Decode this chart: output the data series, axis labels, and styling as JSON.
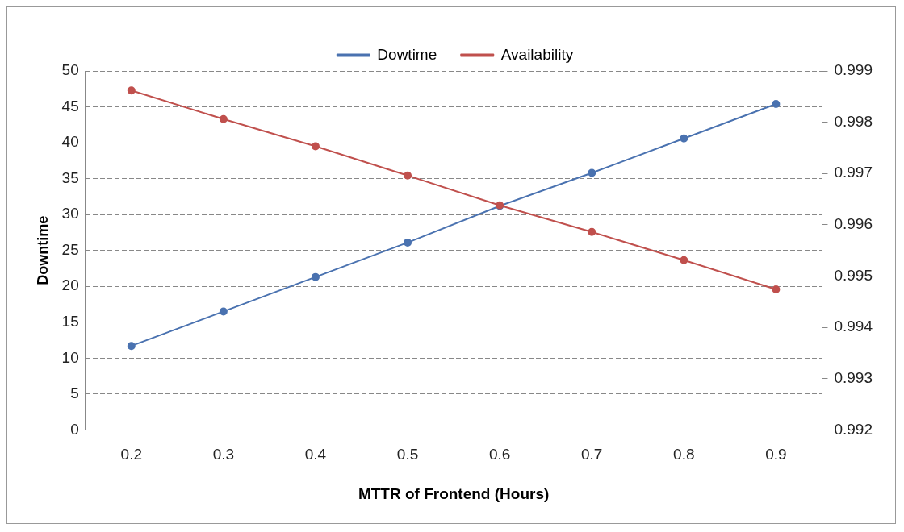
{
  "chart_data": {
    "type": "line",
    "xlabel": "MTTR of Frontend (Hours)",
    "ylabel": "Downtime",
    "categories": [
      "0.2",
      "0.3",
      "0.4",
      "0.5",
      "0.6",
      "0.7",
      "0.8",
      "0.9"
    ],
    "series": [
      {
        "name": "Dowtime",
        "color": "#4a72b0",
        "values": [
          11.7,
          16.5,
          21.3,
          26.1,
          31.2,
          35.8,
          40.6,
          45.4
        ]
      },
      {
        "name": "Availability",
        "color": "#c0504d",
        "axis": "y2",
        "values": [
          0.99862,
          0.99806,
          0.99753,
          0.99696,
          0.99638,
          0.99586,
          0.99531,
          0.99474
        ]
      }
    ],
    "ylim": [
      0,
      50
    ],
    "yticks": [
      0,
      5,
      10,
      15,
      20,
      25,
      30,
      35,
      40,
      45,
      50
    ],
    "y2lim": [
      0.992,
      0.999
    ],
    "y2ticks": [
      0.992,
      0.993,
      0.994,
      0.995,
      0.996,
      0.997,
      0.998,
      0.999
    ],
    "grid": "y",
    "legend": "top",
    "marker": "circle",
    "line_style": "solid"
  }
}
